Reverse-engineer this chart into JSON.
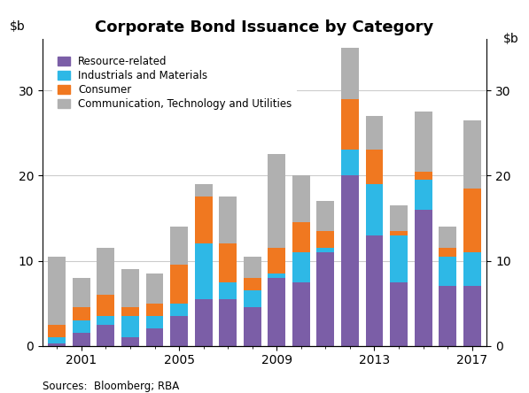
{
  "title": "Corporate Bond Issuance by Category",
  "source": "Sources:  Bloomberg; RBA",
  "years": [
    2000,
    2001,
    2002,
    2003,
    2004,
    2005,
    2006,
    2007,
    2008,
    2009,
    2010,
    2011,
    2012,
    2013,
    2014,
    2015,
    2016,
    2017
  ],
  "resource_related": [
    0.3,
    1.5,
    2.5,
    1.0,
    2.0,
    3.5,
    5.5,
    5.5,
    4.5,
    8.0,
    7.5,
    11.0,
    20.0,
    13.0,
    7.5,
    16.0,
    7.0,
    7.0
  ],
  "industrials_materials": [
    0.7,
    1.5,
    1.0,
    2.5,
    1.5,
    1.5,
    6.5,
    2.0,
    2.0,
    0.5,
    3.5,
    0.5,
    3.0,
    6.0,
    5.5,
    3.5,
    3.5,
    4.0
  ],
  "consumer": [
    1.5,
    1.5,
    2.5,
    1.0,
    1.5,
    4.5,
    5.5,
    4.5,
    1.5,
    3.0,
    3.5,
    2.0,
    6.0,
    4.0,
    0.5,
    1.0,
    1.0,
    7.5
  ],
  "comm_tech_utilities": [
    8.0,
    3.5,
    5.5,
    4.5,
    3.5,
    4.5,
    1.5,
    5.5,
    2.5,
    11.0,
    5.5,
    3.5,
    6.0,
    4.0,
    3.0,
    7.0,
    2.5,
    8.0
  ],
  "colors": {
    "resource_related": "#7b5ea7",
    "industrials_materials": "#2eb8e6",
    "consumer": "#f07820",
    "comm_tech_utilities": "#b0b0b0"
  },
  "legend_labels": [
    "Resource-related",
    "Industrials and Materials",
    "Consumer",
    "Communication, Technology and Utilities"
  ],
  "ylim": [
    0,
    36
  ],
  "yticks": [
    0,
    10,
    20,
    30
  ],
  "figsize": [
    5.97,
    4.44
  ],
  "dpi": 100
}
